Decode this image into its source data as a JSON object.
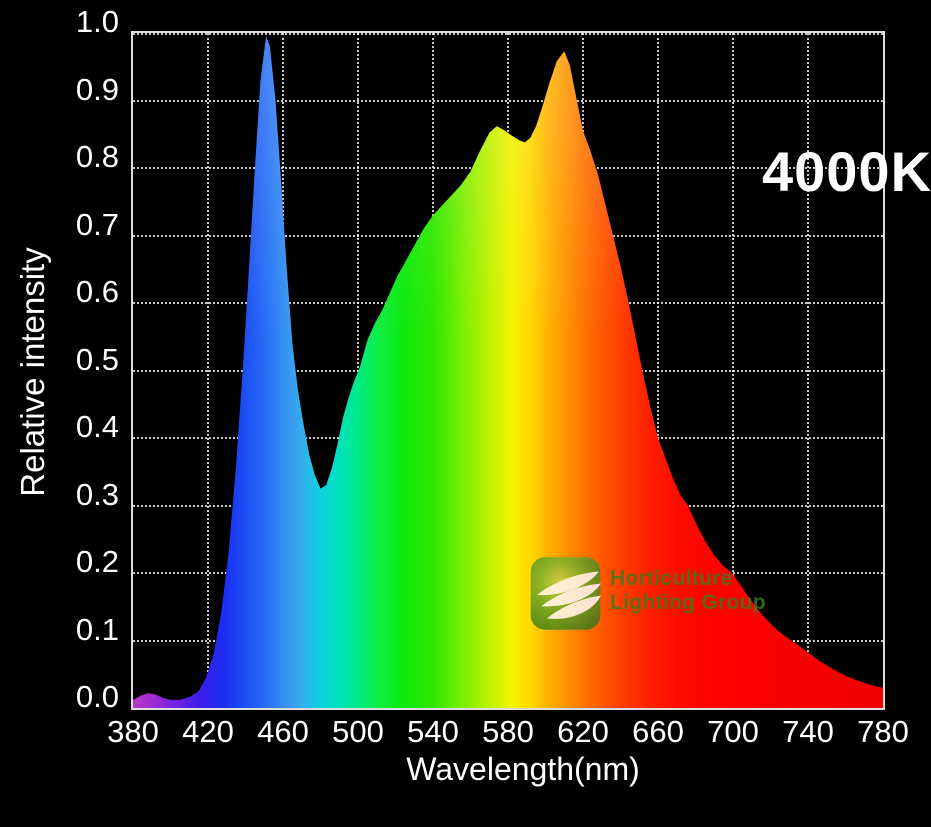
{
  "figure": {
    "background": "#000000",
    "text_color": "#ffffff",
    "grid_color": "rgba(255,255,255,0.78)",
    "border_color": "#dcdcdc"
  },
  "chart_data": {
    "type": "area",
    "title": "4000K",
    "xlabel": "Wavelength(nm)",
    "ylabel": "Relative intensity",
    "xlim": [
      380,
      780
    ],
    "ylim": [
      0,
      1
    ],
    "x_ticks": [
      380,
      420,
      460,
      500,
      540,
      580,
      620,
      660,
      700,
      740,
      780
    ],
    "y_ticks": [
      "0.0",
      "0.1",
      "0.2",
      "0.3",
      "0.4",
      "0.5",
      "0.6",
      "0.7",
      "0.8",
      "0.9",
      "1.0"
    ],
    "grid": "dotted, both axes, behind series",
    "legend": "none",
    "series": [
      {
        "name": "4000K LED spectral power distribution",
        "fill": "visible-light spectrum gradient",
        "points": [
          [
            380,
            0.012
          ],
          [
            384,
            0.018
          ],
          [
            388,
            0.022
          ],
          [
            392,
            0.02
          ],
          [
            396,
            0.015
          ],
          [
            400,
            0.012
          ],
          [
            405,
            0.012
          ],
          [
            410,
            0.016
          ],
          [
            415,
            0.025
          ],
          [
            419,
            0.045
          ],
          [
            423,
            0.08
          ],
          [
            427,
            0.14
          ],
          [
            431,
            0.23
          ],
          [
            435,
            0.36
          ],
          [
            439,
            0.52
          ],
          [
            442,
            0.66
          ],
          [
            445,
            0.8
          ],
          [
            448,
            0.93
          ],
          [
            451,
            0.995
          ],
          [
            453,
            0.98
          ],
          [
            456,
            0.9
          ],
          [
            459,
            0.78
          ],
          [
            462,
            0.65
          ],
          [
            465,
            0.54
          ],
          [
            468,
            0.47
          ],
          [
            471,
            0.42
          ],
          [
            474,
            0.375
          ],
          [
            477,
            0.345
          ],
          [
            480,
            0.325
          ],
          [
            483,
            0.33
          ],
          [
            486,
            0.355
          ],
          [
            489,
            0.39
          ],
          [
            492,
            0.43
          ],
          [
            495,
            0.46
          ],
          [
            498,
            0.485
          ],
          [
            501,
            0.505
          ],
          [
            505,
            0.545
          ],
          [
            509,
            0.57
          ],
          [
            513,
            0.59
          ],
          [
            517,
            0.615
          ],
          [
            521,
            0.64
          ],
          [
            525,
            0.66
          ],
          [
            530,
            0.685
          ],
          [
            535,
            0.71
          ],
          [
            540,
            0.73
          ],
          [
            545,
            0.745
          ],
          [
            550,
            0.76
          ],
          [
            555,
            0.775
          ],
          [
            560,
            0.795
          ],
          [
            565,
            0.825
          ],
          [
            570,
            0.852
          ],
          [
            574,
            0.862
          ],
          [
            578,
            0.856
          ],
          [
            582,
            0.848
          ],
          [
            586,
            0.841
          ],
          [
            589,
            0.838
          ],
          [
            592,
            0.845
          ],
          [
            595,
            0.862
          ],
          [
            598,
            0.888
          ],
          [
            602,
            0.925
          ],
          [
            606,
            0.958
          ],
          [
            610,
            0.973
          ],
          [
            613,
            0.952
          ],
          [
            616,
            0.91
          ],
          [
            620,
            0.855
          ],
          [
            624,
            0.825
          ],
          [
            628,
            0.79
          ],
          [
            632,
            0.745
          ],
          [
            636,
            0.7
          ],
          [
            640,
            0.655
          ],
          [
            644,
            0.605
          ],
          [
            648,
            0.55
          ],
          [
            652,
            0.495
          ],
          [
            656,
            0.445
          ],
          [
            660,
            0.4
          ],
          [
            664,
            0.37
          ],
          [
            668,
            0.34
          ],
          [
            672,
            0.315
          ],
          [
            676,
            0.3
          ],
          [
            680,
            0.275
          ],
          [
            685,
            0.248
          ],
          [
            690,
            0.226
          ],
          [
            695,
            0.21
          ],
          [
            700,
            0.198
          ],
          [
            705,
            0.178
          ],
          [
            710,
            0.158
          ],
          [
            715,
            0.14
          ],
          [
            720,
            0.125
          ],
          [
            725,
            0.112
          ],
          [
            730,
            0.102
          ],
          [
            735,
            0.093
          ],
          [
            740,
            0.082
          ],
          [
            745,
            0.072
          ],
          [
            750,
            0.063
          ],
          [
            755,
            0.055
          ],
          [
            760,
            0.048
          ],
          [
            765,
            0.042
          ],
          [
            770,
            0.037
          ],
          [
            775,
            0.033
          ],
          [
            780,
            0.03
          ]
        ]
      }
    ],
    "spectrum_gradient": [
      [
        0,
        "#b836c8"
      ],
      [
        3,
        "#9a2bd4"
      ],
      [
        6,
        "#6f22e0"
      ],
      [
        9,
        "#3c1deb"
      ],
      [
        12,
        "#1c2df2"
      ],
      [
        15,
        "#1c4ff4"
      ],
      [
        18,
        "#2a72f6"
      ],
      [
        21,
        "#3a9af2"
      ],
      [
        23.5,
        "#27bce9"
      ],
      [
        25,
        "#0ed2e0"
      ],
      [
        27.5,
        "#00e2bc"
      ],
      [
        30,
        "#00ea86"
      ],
      [
        33,
        "#0fee3e"
      ],
      [
        36,
        "#0cea0c"
      ],
      [
        40,
        "#2ee800"
      ],
      [
        44,
        "#7cee00"
      ],
      [
        47.5,
        "#bef200"
      ],
      [
        50.5,
        "#f2f200"
      ],
      [
        53,
        "#ffd800"
      ],
      [
        55.5,
        "#ffb000"
      ],
      [
        58,
        "#ff9000"
      ],
      [
        60.5,
        "#ff7000"
      ],
      [
        63,
        "#ff5200"
      ],
      [
        66,
        "#ff3600"
      ],
      [
        69,
        "#ff1e00"
      ],
      [
        73,
        "#ff0a00"
      ],
      [
        80,
        "#fe0000"
      ],
      [
        100,
        "#ee0000"
      ]
    ]
  },
  "logo": {
    "line1": "Horticulture",
    "line2": "Lighting Group",
    "text_color": "#3c7a1c",
    "badge_green_dark": "#35791a",
    "badge_green_mid": "#55a024",
    "badge_glow": "#c9d44a",
    "leaf_color": "#ffffff"
  }
}
